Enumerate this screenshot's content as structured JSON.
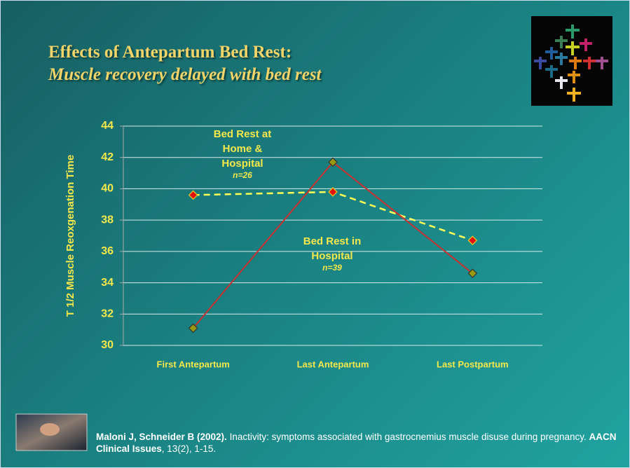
{
  "title": "Effects of Antepartum Bed Rest:",
  "subtitle": "Muscle recovery delayed with bed rest",
  "chart_data": {
    "type": "line",
    "y_label": "T 1/2 Muscle Reoxgenation Time",
    "categories": [
      "First Antepartum",
      "Last Antepartum",
      "Last Postpartum"
    ],
    "series": [
      {
        "name": "Bed Rest at Home & Hospital",
        "note": "n=26",
        "color": "#ffff55",
        "marker_color": "#e01010",
        "dashed": true,
        "values": [
          39.6,
          39.8,
          36.7
        ]
      },
      {
        "name": "Bed Rest in Hospital",
        "note": "n=39",
        "color": "#c83030",
        "marker_color": "#9a9a10",
        "dashed": false,
        "values": [
          31.1,
          41.7,
          34.6
        ]
      }
    ],
    "ylim": [
      30,
      44
    ],
    "yticks": [
      30,
      32,
      34,
      36,
      38,
      40,
      42,
      44
    ],
    "grid": true
  },
  "citation": {
    "authors": "Maloni J, Schneider B (2002).",
    "text": " Inactivity: symptoms associated with gastrocnemius muscle disuse during pregnancy. ",
    "journal": "AACN Clinical Issues",
    "rest": ", 13(2), 1-15."
  }
}
